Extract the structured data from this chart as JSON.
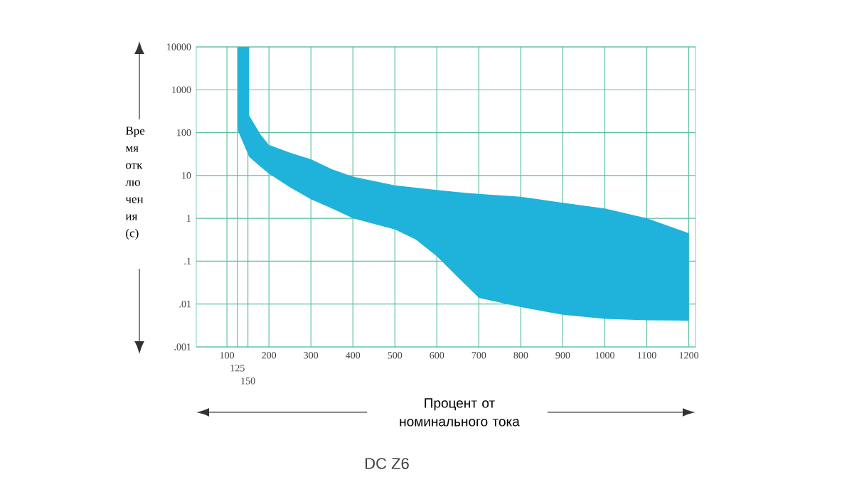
{
  "chart_data": {
    "type": "area",
    "title": "DC Z6",
    "xlabel": "Процент от номинального тока",
    "ylabel": "Вре мя отк лю чен ия (с)",
    "series": [
      {
        "color": "#1fb3db",
        "x": [
          126,
          153,
          153,
          180,
          200,
          250,
          300,
          350,
          400,
          500,
          550,
          600,
          650,
          700,
          800,
          900,
          1000,
          1100,
          1200
        ],
        "values": [
          null,
          null,
          null,
          null,
          null,
          null,
          null,
          null,
          null,
          null,
          null,
          null,
          null,
          null,
          null,
          null,
          null,
          null,
          null
        ],
        "upper": [
          10000,
          10000,
          250,
          90,
          52,
          34,
          24,
          14,
          9.4,
          5.9,
          5.2,
          4.6,
          4.1,
          3.7,
          3.2,
          2.3,
          1.7,
          1.0,
          0.45
        ],
        "lower": [
          112,
          27,
          27,
          16,
          11,
          5.3,
          2.8,
          1.7,
          1.0,
          0.55,
          0.32,
          0.13,
          0.042,
          0.014,
          0.0085,
          0.0056,
          0.0045,
          0.0042,
          0.0041
        ]
      }
    ],
    "xlim": [
      27,
      1216
    ],
    "xticks": [
      100,
      {
        "value": 125,
        "label": null
      },
      {
        "value": 150,
        "label": null
      },
      200,
      300,
      400,
      500,
      600,
      700,
      800,
      900,
      1000,
      1100,
      1200
    ],
    "annotations": [
      "125",
      "150"
    ],
    "ylim": [
      0.001,
      10000
    ],
    "yticks": [
      10000,
      1000,
      100,
      10,
      1,
      {
        "value": 0.1,
        "label": ".1"
      },
      {
        "value": 0.01,
        "label": ".01"
      },
      {
        "value": 0.001,
        "label": ".001"
      }
    ],
    "log": "y",
    "grid": true
  }
}
